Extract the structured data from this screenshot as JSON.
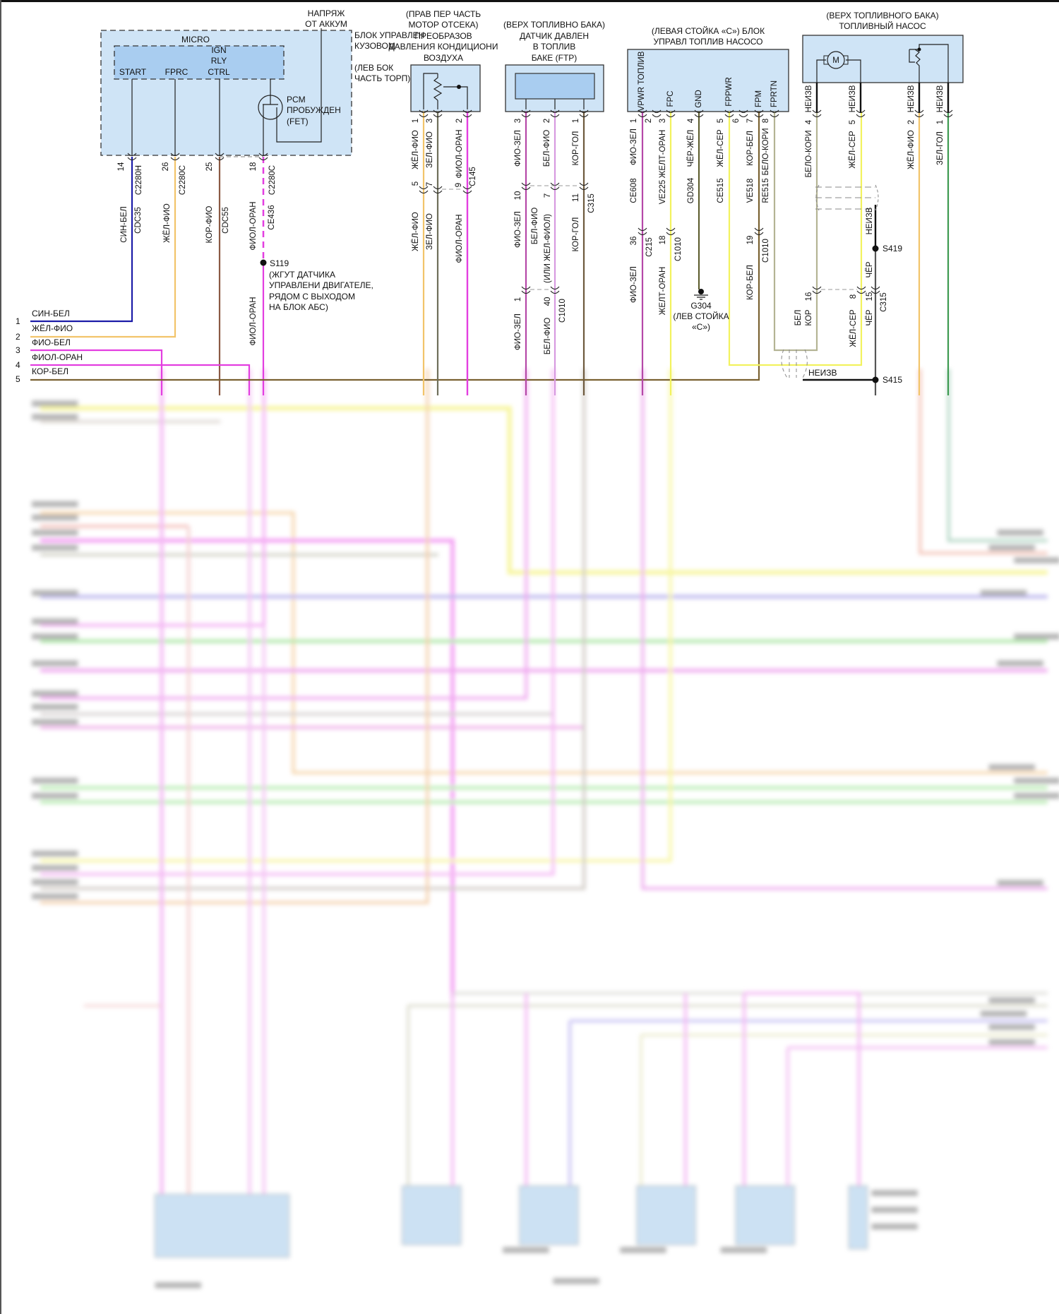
{
  "bcm": {
    "supply": [
      "НАПРЯЖ",
      "ОТ АККУМ"
    ],
    "title": [
      "БЛОК УПРАВЛЕН",
      "КУЗОВОМ"
    ],
    "location": [
      "(ЛЕВ БОК",
      "ЧАСТЬ ТОРП)"
    ],
    "micro": "MICRO",
    "ign": [
      "IGN",
      "RLY",
      "CTRL"
    ],
    "start": "START",
    "fprc": "FPRC",
    "fet": [
      "PCM",
      "ПРОБУЖДЕН",
      "(FET)"
    ],
    "pins": [
      {
        "pin": "14",
        "connector": "C2280H",
        "color": "СИН-БЕЛ",
        "circuit": "CDC35"
      },
      {
        "pin": "26",
        "connector": "C2280C",
        "color": "ЖЁЛ-ФИО"
      },
      {
        "pin": "25",
        "color": "КОР-ФИО",
        "circuit": "CDC55"
      },
      {
        "pin": "18",
        "connector": "C2280C",
        "color": "ФИОЛ-ОРАН",
        "circuit": "CE436",
        "color_below": "ФИОЛ-ОРАН"
      }
    ]
  },
  "splice_s119": {
    "id": "S119",
    "desc": [
      "(ЖГУТ ДАТЧИКА",
      "УПРАВЛЕНИ ДВИГАТЕЛЕ,",
      "РЯДОМ С ВЫХОДОМ",
      "НА БЛОК АБС)"
    ]
  },
  "rows": [
    {
      "num": "1",
      "label": "СИН-БЕЛ"
    },
    {
      "num": "2",
      "label": "ЖЁЛ-ФИО"
    },
    {
      "num": "3",
      "label": "ФИО-БЕЛ"
    },
    {
      "num": "4",
      "label": "ФИОЛ-ОРАН"
    },
    {
      "num": "5",
      "label": "КОР-БЕЛ"
    }
  ],
  "ac_sensor": {
    "title": [
      "(ПРАВ ПЕР ЧАСТЬ",
      "МОТОР ОТСЕКА)",
      "ПРЕОБРАЗОВ",
      "ДАВЛЕНИЯ КОНДИЦИОНИ",
      "ВОЗДУХА"
    ],
    "pins": [
      {
        "pin": "1",
        "color": "ЖЁЛ-ФИО",
        "pin2": "5",
        "color2": "ЖЁЛ-ФИО"
      },
      {
        "pin": "3",
        "color": "ЗЕЛ-ФИО",
        "pin2": "7",
        "color2": "ЗЕЛ-ФИО"
      },
      {
        "pin": "2",
        "color": "ФИОЛ-ОРАН",
        "pin2": "9",
        "color2": "ФИОЛ-ОРАН"
      }
    ],
    "connector": "C145"
  },
  "ftp_sensor": {
    "title": [
      "(ВЕРХ ТОПЛИВНО БАКА)",
      "ДАТЧИК ДАВЛЕН",
      "В ТОПЛИВ",
      "БАКЕ (FTP)"
    ],
    "pins": [
      {
        "pin": "3",
        "color": "ФИО-ЗЕЛ",
        "pin2": "10",
        "color2": "ФИО-ЗЕЛ",
        "pin3": "1",
        "color3": "ФИО-ЗЕЛ"
      },
      {
        "pin": "2",
        "color": "БЕЛ-ФИО",
        "pin2": "7",
        "color2": "БЕЛ-ФИО",
        "alt": "(ИЛИ ЖЕЛ-ФИОЛ)",
        "pin3": "40",
        "color3": "БЕЛ-ФИО"
      },
      {
        "pin": "1",
        "color": "КОР-ГОЛ",
        "pin2": "11",
        "color2": "КОР-ГОЛ"
      }
    ],
    "connector2": "C315",
    "connector3": "C1010"
  },
  "fpcm": {
    "title": [
      "(ЛЕВАЯ СТОЙКА «С») БЛОК",
      "УПРАВЛ ТОПЛИВ НАСОСО"
    ],
    "pin_labels": [
      "VPWR ТОПЛИВ",
      "FPC",
      "GND",
      "FPPWR",
      "FPM",
      "FPRTN"
    ],
    "pins": [
      {
        "pin": "1",
        "color": "ФИО-ЗЕЛ",
        "circuit": "CE608",
        "pin2": "36",
        "connector2": "C215",
        "color2": "ФИО-ЗЕЛ"
      },
      {
        "pin": "2"
      },
      {
        "pin": "3",
        "color": "ЖЕЛТ-ОРАН",
        "circuit": "VE225",
        "pin2": "18",
        "connector2": "C1010",
        "color2": "ЖЕЛТ-ОРАН"
      },
      {
        "pin": "4",
        "color": "ЧЁР-ЖЁЛ",
        "circuit": "GD304"
      },
      {
        "pin": "5",
        "color": "ЖЁЛ-СЕР",
        "circuit": "CE515"
      },
      {
        "pin": "6"
      },
      {
        "pin": "7",
        "color": "КОР-БЕЛ",
        "circuit": "VE518",
        "pin2": "19",
        "connector2": "C1010",
        "color2": "КОР-БЕЛ"
      },
      {
        "pin": "8",
        "color": "БЕЛО-КОРИ",
        "circuit": "RE515"
      }
    ],
    "ground": {
      "id": "G304",
      "desc": [
        "(ЛЕВ СТОЙКА",
        "«С»)"
      ]
    }
  },
  "fuel_pump": {
    "title": [
      "(ВЕРХ ТОПЛИВНОГО БАКА)",
      "ТОПЛИВНЫЙ НАСОС"
    ],
    "motor": "M",
    "pins": [
      {
        "pin": "4",
        "color": "БЕЛО-КОРИ",
        "side": "НЕИЗВ"
      },
      {
        "pin": "5",
        "color": "ЖЁЛ-СЕР",
        "side": "НЕИЗВ"
      },
      {
        "pin": "2",
        "color": "ЖЁЛ-ФИО",
        "side": "НЕИЗВ"
      },
      {
        "pin": "1",
        "color": "ЗЕЛ-ГОЛ",
        "side": "НЕИЗВ"
      }
    ],
    "lower": {
      "unknown1": "НЕИЗВ",
      "s419": "S419",
      "black1": "ЧЁР",
      "pin16": "16",
      "kor": "КОР",
      "bel": "БЕЛ",
      "pin8": "8",
      "color8": "ЖЁЛ-СЕР",
      "pin15": "15",
      "black2": "ЧЁР",
      "connector": "C315",
      "unknown2": "НЕИЗВ",
      "s415": "S415"
    }
  },
  "colors": {
    "blue": "#1c1ca8",
    "yellow_violet": "#f2c46a",
    "pink": "#e33ee0",
    "brown": "#8b5a44",
    "brown_white": "#7a6232",
    "green_violet": "#6f6f5a",
    "violet_green": "#b548a8",
    "white_violet": "#d79ae0",
    "brown_blue": "#6e5a3e",
    "yellow": "#f2f25e",
    "black_yellow": "#5a5a2a",
    "white_brown": "#b4b494",
    "green_blue": "#3d9a50"
  }
}
